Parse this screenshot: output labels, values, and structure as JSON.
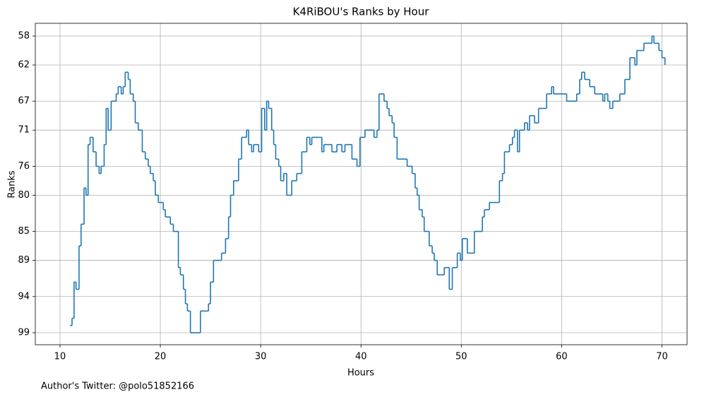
{
  "chart_data": {
    "type": "line",
    "step": "post",
    "title": "K4RiBOU's Ranks by Hour",
    "xlabel": "Hours",
    "ylabel": "Ranks",
    "footnote": "Author's Twitter: @polo51852166",
    "color": "#1f77b4",
    "grid": true,
    "xlim": [
      7.54,
      72.5
    ],
    "xticks": [
      10,
      20,
      30,
      40,
      50,
      60,
      70
    ],
    "ylim": [
      100.66,
      56.24
    ],
    "yticks": [
      58,
      62,
      67,
      71,
      76,
      80,
      85,
      89,
      94,
      99
    ],
    "x": [
      11.0,
      11.2,
      11.4,
      11.6,
      11.9,
      12.1,
      12.4,
      12.6,
      12.8,
      13.0,
      13.3,
      13.6,
      13.9,
      14.1,
      14.4,
      14.6,
      14.8,
      15.1,
      15.6,
      15.8,
      16.1,
      16.3,
      16.5,
      16.8,
      17.0,
      17.3,
      17.5,
      17.8,
      18.2,
      18.5,
      18.8,
      19.0,
      19.3,
      19.5,
      19.8,
      20.3,
      20.5,
      21.0,
      21.3,
      21.8,
      22.0,
      22.3,
      22.5,
      22.7,
      23.0,
      24.0,
      24.8,
      25.0,
      25.3,
      26.1,
      26.5,
      26.8,
      27.0,
      27.3,
      27.8,
      28.1,
      28.6,
      28.8,
      29.1,
      29.3,
      29.8,
      30.1,
      30.4,
      30.6,
      30.8,
      31.1,
      31.3,
      31.5,
      31.8,
      32.0,
      32.3,
      32.6,
      33.1,
      33.6,
      34.1,
      34.6,
      34.9,
      35.1,
      36.1,
      36.3,
      37.1,
      37.6,
      38.1,
      38.4,
      39.1,
      39.6,
      39.9,
      40.4,
      41.3,
      41.6,
      41.8,
      42.3,
      42.6,
      42.8,
      43.1,
      43.3,
      43.6,
      44.6,
      45.1,
      45.4,
      45.6,
      45.8,
      46.1,
      46.3,
      46.8,
      47.1,
      47.3,
      47.6,
      48.3,
      48.8,
      49.1,
      49.6,
      49.9,
      50.1,
      50.6,
      51.3,
      52.1,
      52.3,
      52.8,
      53.8,
      54.1,
      54.3,
      54.8,
      55.1,
      55.3,
      55.6,
      55.8,
      56.3,
      56.6,
      56.8,
      57.3,
      57.7,
      58.5,
      59.0,
      59.2,
      60.5,
      61.5,
      61.8,
      62.0,
      62.3,
      62.8,
      63.3,
      64.1,
      64.3,
      64.6,
      64.8,
      65.1,
      65.8,
      66.3,
      66.8,
      67.3,
      67.5,
      68.2,
      69.0,
      69.2,
      69.7,
      70.0,
      70.3
    ],
    "values": [
      98,
      97,
      92,
      93,
      87,
      84,
      79,
      80,
      73,
      72,
      74,
      76,
      77,
      76,
      73,
      68,
      71,
      67,
      66,
      65,
      66,
      65,
      63,
      64,
      66,
      67,
      70,
      71,
      74,
      75,
      76,
      77,
      78,
      80,
      81,
      82,
      83,
      84,
      85,
      90,
      91,
      93,
      95,
      96,
      99,
      96,
      95,
      92,
      89,
      88,
      86,
      83,
      80,
      78,
      75,
      72,
      71,
      73,
      74,
      73,
      74,
      68,
      71,
      67,
      68,
      71,
      73,
      75,
      76,
      78,
      77,
      80,
      78,
      77,
      74,
      72,
      73,
      72,
      74,
      73,
      74,
      73,
      74,
      73,
      75,
      76,
      72,
      71,
      72,
      71,
      66,
      67,
      68,
      69,
      70,
      72,
      75,
      76,
      77,
      79,
      80,
      82,
      83,
      85,
      87,
      88,
      89,
      91,
      90,
      93,
      90,
      88,
      89,
      86,
      88,
      85,
      83,
      82,
      81,
      78,
      77,
      74,
      73,
      72,
      71,
      74,
      71,
      70,
      71,
      69,
      70,
      68,
      66,
      65,
      66,
      67,
      66,
      64,
      63,
      64,
      65,
      66,
      67,
      66,
      67,
      68,
      67,
      66,
      64,
      61,
      62,
      60,
      59,
      58,
      59,
      60,
      61,
      62
    ]
  }
}
